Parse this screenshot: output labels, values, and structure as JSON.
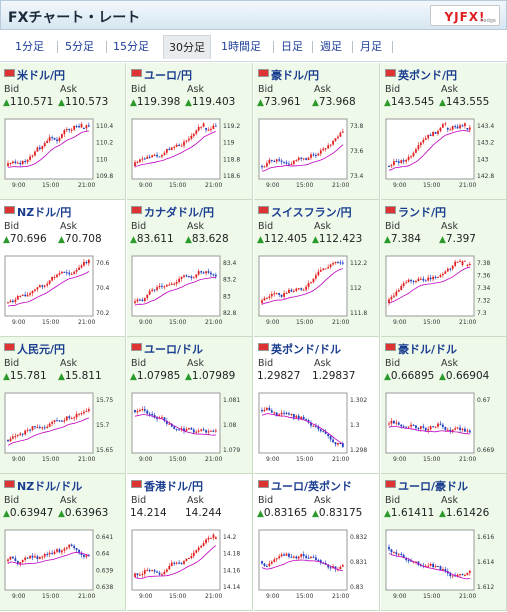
{
  "header": {
    "title": "FXチャート・レート",
    "logo_text": "YJFX!",
    "logo_sub": "hedge"
  },
  "tabs": [
    "1分足",
    "5分足",
    "15分足",
    "30分足",
    "1時間足",
    "日足",
    "週足",
    "月足"
  ],
  "active_tab": "30分足",
  "labels": {
    "bid": "Bid",
    "ask": "Ask",
    "up_arrow": "▲"
  },
  "colors": {
    "up": "#2b9a2b",
    "link": "#1f3f99",
    "candle_up": "#e02020",
    "candle_down": "#1f3fbf",
    "ma": "#c000c0"
  },
  "pairs": [
    {
      "name": "米ドル/円",
      "bid": "110.571",
      "ask": "110.573",
      "up": true,
      "ticks": [
        "110.4",
        "110.2",
        "110",
        "109.8"
      ],
      "trend": "up"
    },
    {
      "name": "ユーロ/円",
      "bid": "119.398",
      "ask": "119.403",
      "up": true,
      "ticks": [
        "119.2",
        "119",
        "118.8",
        "118.6"
      ],
      "trend": "up"
    },
    {
      "name": "豪ドル/円",
      "bid": "73.961",
      "ask": "73.968",
      "up": true,
      "ticks": [
        "73.8",
        "73.6",
        "73.4"
      ],
      "trend": "up"
    },
    {
      "name": "英ポンド/円",
      "bid": "143.545",
      "ask": "143.555",
      "up": true,
      "ticks": [
        "143.4",
        "143.2",
        "143",
        "142.8"
      ],
      "trend": "up"
    },
    {
      "name": "NZドル/円",
      "bid": "70.696",
      "ask": "70.708",
      "up": true,
      "ticks": [
        "70.6",
        "70.4",
        "70.2"
      ],
      "trend": "up"
    },
    {
      "name": "カナダドル/円",
      "bid": "83.611",
      "ask": "83.628",
      "up": true,
      "ticks": [
        "83.4",
        "83.2",
        "83",
        "82.8"
      ],
      "trend": "up"
    },
    {
      "name": "スイスフラン/円",
      "bid": "112.405",
      "ask": "112.423",
      "up": true,
      "ticks": [
        "112.2",
        "112",
        "111.8"
      ],
      "trend": "up"
    },
    {
      "name": "ランド/円",
      "bid": "7.384",
      "ask": "7.397",
      "up": true,
      "ticks": [
        "7.38",
        "7.36",
        "7.34",
        "7.32",
        "7.3"
      ],
      "trend": "up"
    },
    {
      "name": "人民元/円",
      "bid": "15.781",
      "ask": "15.811",
      "up": true,
      "ticks": [
        "15.75",
        "15.7",
        "15.65"
      ],
      "trend": "up"
    },
    {
      "name": "ユーロ/ドル",
      "bid": "1.07985",
      "ask": "1.07989",
      "up": true,
      "ticks": [
        "1.081",
        "1.08",
        "1.079"
      ],
      "trend": "down"
    },
    {
      "name": "英ポンド/ドル",
      "bid": "1.29827",
      "ask": "1.29837",
      "up": false,
      "ticks": [
        "1.302",
        "1.3",
        "1.298"
      ],
      "trend": "down"
    },
    {
      "name": "豪ドル/ドル",
      "bid": "0.66895",
      "ask": "0.66904",
      "up": true,
      "ticks": [
        "0.67",
        "0.669"
      ],
      "trend": "flat"
    },
    {
      "name": "NZドル/ドル",
      "bid": "0.63947",
      "ask": "0.63963",
      "up": true,
      "ticks": [
        "0.641",
        "0.64",
        "0.639",
        "0.638"
      ],
      "trend": "flat"
    },
    {
      "name": "香港ドル/円",
      "bid": "14.214",
      "ask": "14.244",
      "up": false,
      "ticks": [
        "14.2",
        "14.18",
        "14.16",
        "14.14"
      ],
      "trend": "up"
    },
    {
      "name": "ユーロ/英ポンド",
      "bid": "0.83165",
      "ask": "0.83175",
      "up": true,
      "ticks": [
        "0.832",
        "0.831",
        "0.83"
      ],
      "trend": "flat"
    },
    {
      "name": "ユーロ/豪ドル",
      "bid": "1.61411",
      "ask": "1.61426",
      "up": true,
      "ticks": [
        "1.616",
        "1.614",
        "1.612"
      ],
      "trend": "down"
    }
  ],
  "x_ticks": [
    "9:00",
    "15:00",
    "21:00"
  ]
}
